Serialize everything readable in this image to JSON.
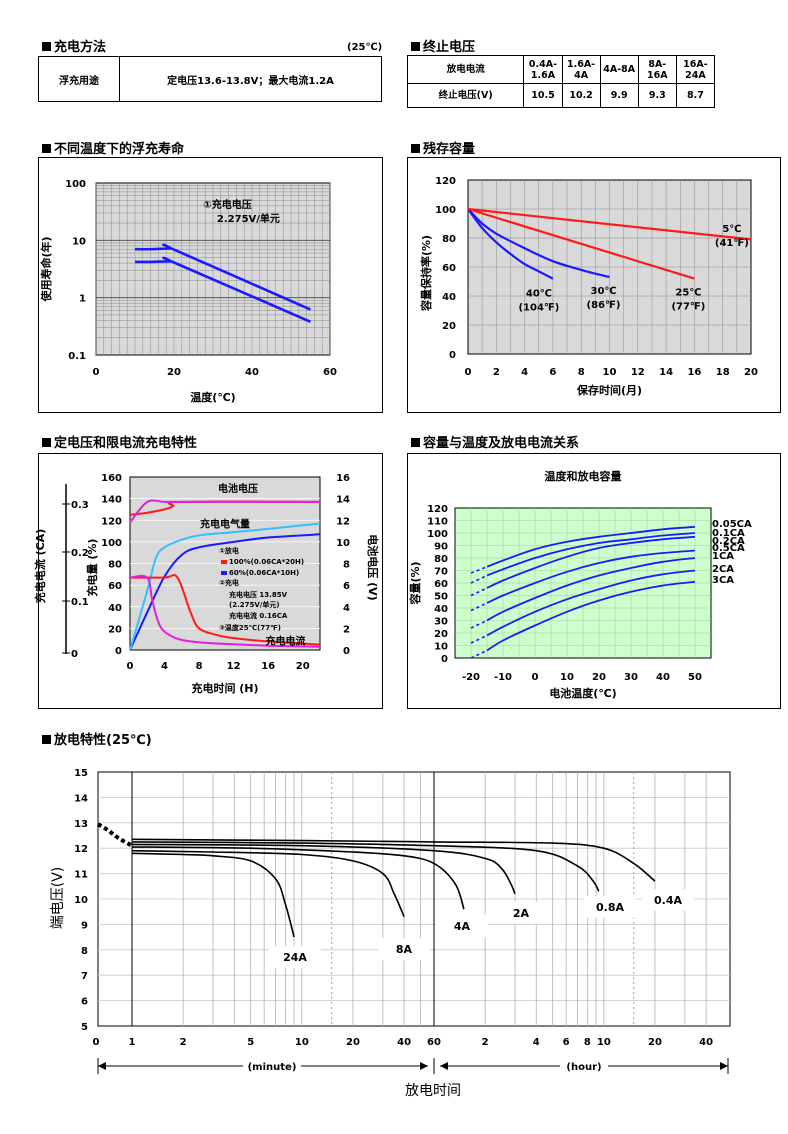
{
  "sections": {
    "float_method": {
      "title": "充电方法",
      "temp_note": "(25℃)",
      "row_label": "浮充用途",
      "row_value": "定电压13.6-13.8V；最大电流1.2A"
    },
    "cutoff": {
      "title": "终止电压",
      "header_label": "放电电流",
      "value_label": "终止电压(V)",
      "currents": [
        "0.4A-1.6A",
        "1.6A-4A",
        "4A-8A",
        "8A-16A",
        "16A-24A"
      ],
      "voltages": [
        "10.5",
        "10.2",
        "9.9",
        "9.3",
        "8.7"
      ]
    },
    "life": {
      "title": "不同温度下的浮充寿命"
    },
    "residual": {
      "title": "残存容量"
    },
    "charge": {
      "title": "定电压和限电流充电特性"
    },
    "capacity": {
      "title": "容量与温度及放电电流关系"
    },
    "discharge": {
      "title": "放电特性(25℃)"
    }
  },
  "chart_data": [
    {
      "id": "life",
      "type": "line",
      "xlabel": "温度(℃)",
      "ylabel": "使用寿命(年)",
      "xlim": [
        0,
        60
      ],
      "ylim": [
        0.1,
        100
      ],
      "y_scale": "log",
      "x_ticks": [
        "0",
        "20",
        "40",
        "60"
      ],
      "y_ticks": [
        "100",
        "10",
        "1",
        "0.1"
      ],
      "annotation": [
        "①充电电压",
        "2.275V/单元"
      ],
      "grid": true,
      "series": [
        {
          "x": [
            10,
            14,
            19,
            20,
            55
          ],
          "y": [
            7.0,
            7.0,
            7.2,
            6.9,
            0.62
          ]
        },
        {
          "x": [
            10,
            14,
            19,
            20,
            55
          ],
          "y": [
            4.2,
            4.2,
            4.3,
            4.1,
            0.38
          ]
        }
      ]
    },
    {
      "id": "residual",
      "type": "line",
      "xlabel": "保存时间(月)",
      "ylabel": "容量保持率(%)",
      "xlim": [
        0,
        20
      ],
      "ylim": [
        0,
        120
      ],
      "x_ticks": [
        "0",
        "2",
        "4",
        "6",
        "8",
        "10",
        "12",
        "14",
        "16",
        "18",
        "20"
      ],
      "y_ticks": [
        "0",
        "20",
        "40",
        "60",
        "80",
        "100",
        "120"
      ],
      "grid": true,
      "series": [
        {
          "name": "40℃(104℉)",
          "label_lines": [
            "40℃",
            "(104℉)"
          ],
          "color": "#1a1aff",
          "x": [
            0,
            1,
            2,
            3,
            4,
            5,
            6
          ],
          "y": [
            100,
            87,
            77,
            69,
            62,
            57,
            52
          ]
        },
        {
          "name": "30℃(86℉)",
          "label_lines": [
            "30℃",
            "(86℉)"
          ],
          "color": "#1a1aff",
          "x": [
            0,
            1,
            2,
            4,
            6,
            8,
            10
          ],
          "y": [
            100,
            90,
            83,
            73,
            64,
            58,
            53
          ]
        },
        {
          "name": "25℃(77℉)",
          "label_lines": [
            "25℃",
            "(77℉)"
          ],
          "color": "#ff1a1a",
          "x": [
            0,
            16
          ],
          "y": [
            100,
            52
          ]
        },
        {
          "name": "5℃(41℉)",
          "label_lines": [
            "5℃",
            "(41℉)"
          ],
          "color": "#ff1a1a",
          "x": [
            0,
            20
          ],
          "y": [
            100,
            79
          ]
        }
      ]
    },
    {
      "id": "charge",
      "type": "line",
      "xlabel": "充电时间 (H)",
      "left_axis_label": "充电电流 (CA)",
      "left_ticks": [
        "0",
        "0.1",
        "0.2",
        "0.3"
      ],
      "y1label": "充电量 (%)",
      "y2label": "电池电压 (V)",
      "xlim": [
        0,
        22
      ],
      "y1lim": [
        0,
        160
      ],
      "y2lim": [
        0,
        16
      ],
      "x_ticks": [
        "0",
        "4",
        "8",
        "12",
        "16",
        "20"
      ],
      "y1_ticks": [
        "0",
        "20",
        "40",
        "60",
        "80",
        "100",
        "120",
        "140",
        "160"
      ],
      "y2_ticks": [
        "0",
        "2",
        "4",
        "6",
        "8",
        "10",
        "12",
        "14",
        "16"
      ],
      "labels": {
        "battery_voltage": "电池电压",
        "charge_amount": "充电电气量",
        "charge_current": "充电电流"
      },
      "legend_lines": [
        "①放电",
        "100%(0.06CA*20H)",
        "60%(0.06CA*10H)",
        "②充电",
        "充电电压 13.85V",
        "(2.275V/单元)",
        "充电电流 0.16CA",
        "③温度25℃(77℉)"
      ],
      "series": [
        {
          "name": "100%(0.06CA*20H)",
          "color": "#ff1a1a",
          "axis": "y1",
          "x": [
            0,
            2,
            4,
            5,
            6,
            22
          ],
          "y": [
            125,
            127,
            130,
            133,
            137,
            137
          ]
        },
        {
          "name": "60%(0.06CA*10H)",
          "color": "#e020e0",
          "axis": "y1",
          "x": [
            0,
            2,
            4,
            6,
            22
          ],
          "y": [
            118,
            137,
            137,
            137,
            137
          ]
        },
        {
          "name": "充电电气量 (100%)",
          "color": "#1a1aff",
          "axis": "y1",
          "x": [
            0,
            2,
            4,
            6,
            8,
            12,
            16,
            22
          ],
          "y": [
            0,
            35,
            68,
            88,
            95,
            100,
            104,
            107
          ]
        },
        {
          "name": "充电电气量 (60%)",
          "color": "#33c0ff",
          "axis": "y1",
          "x": [
            0,
            2,
            3,
            4,
            6,
            8,
            12,
            16,
            22
          ],
          "y": [
            0,
            55,
            85,
            95,
            102,
            106,
            109,
            112,
            117
          ]
        },
        {
          "name": "充电电流 (100%)",
          "color": "#ff1a1a",
          "axis": "y1",
          "x": [
            0,
            4,
            5.5,
            7,
            8,
            10,
            12,
            16,
            22
          ],
          "y": [
            67,
            67,
            67,
            35,
            20,
            14,
            11,
            8,
            5
          ]
        },
        {
          "name": "充电电流 (60%)",
          "color": "#e020e0",
          "axis": "y1",
          "x": [
            0,
            2,
            2.6,
            3.5,
            5,
            7,
            10,
            16,
            22
          ],
          "y": [
            67,
            67,
            45,
            22,
            12,
            8,
            6,
            4,
            3
          ]
        }
      ]
    },
    {
      "id": "capacity",
      "type": "line",
      "title": "温度和放电容量",
      "xlabel": "电池温度(℃)",
      "ylabel": "容量(%)",
      "xlim": [
        -25,
        55
      ],
      "ylim": [
        0,
        120
      ],
      "x_ticks": [
        "-20",
        "-10",
        "0",
        "10",
        "20",
        "30",
        "40",
        "50"
      ],
      "y_ticks": [
        "0",
        "10",
        "20",
        "30",
        "40",
        "50",
        "60",
        "70",
        "80",
        "90",
        "100",
        "110",
        "120"
      ],
      "grid": true,
      "series": [
        {
          "name": "0.05CA",
          "x": [
            -20,
            -15,
            -10,
            0,
            10,
            20,
            30,
            40,
            50
          ],
          "y": [
            68,
            73,
            78,
            87,
            93,
            97,
            100,
            103,
            105
          ]
        },
        {
          "name": "0.1CA",
          "x": [
            -20,
            -15,
            -10,
            0,
            10,
            20,
            30,
            40,
            50
          ],
          "y": [
            60,
            66,
            71,
            80,
            87,
            92,
            95,
            98,
            100
          ]
        },
        {
          "name": "0.2CA",
          "x": [
            -20,
            -15,
            -10,
            0,
            10,
            20,
            30,
            40,
            50
          ],
          "y": [
            50,
            56,
            62,
            72,
            81,
            88,
            92,
            95,
            97
          ]
        },
        {
          "name": "0.5CA",
          "x": [
            -20,
            -15,
            -10,
            0,
            10,
            20,
            30,
            40,
            50
          ],
          "y": [
            38,
            44,
            50,
            60,
            69,
            76,
            81,
            84,
            86
          ]
        },
        {
          "name": "1CA",
          "x": [
            -20,
            -15,
            -10,
            0,
            10,
            20,
            30,
            40,
            50
          ],
          "y": [
            24,
            30,
            37,
            48,
            58,
            66,
            72,
            77,
            80
          ]
        },
        {
          "name": "2CA",
          "x": [
            -20,
            -15,
            -10,
            0,
            10,
            20,
            30,
            40,
            50
          ],
          "y": [
            12,
            18,
            25,
            37,
            47,
            55,
            62,
            67,
            70
          ]
        },
        {
          "name": "3CA",
          "x": [
            -20,
            -15,
            -10,
            0,
            10,
            20,
            30,
            40,
            50
          ],
          "y": [
            0,
            6,
            14,
            26,
            37,
            46,
            53,
            58,
            61
          ]
        }
      ]
    },
    {
      "id": "discharge",
      "type": "line",
      "xlabel": "放电时间",
      "ylabel": "端电压(V)",
      "ylim": [
        5,
        15
      ],
      "y_ticks": [
        "5",
        "6",
        "7",
        "8",
        "9",
        "10",
        "11",
        "12",
        "13",
        "14",
        "15"
      ],
      "x_ticks_minute": [
        "0",
        "1",
        "2",
        "5",
        "10",
        "20",
        "40",
        "60"
      ],
      "x_ticks_hour": [
        "2",
        "4",
        "6",
        "8",
        "10",
        "20",
        "40"
      ],
      "minute_label": "(minute)",
      "hour_label": "(hour)",
      "x_scale": "log",
      "grid": true,
      "series": [
        {
          "name": "24A",
          "x_min": [
            1,
            2,
            3,
            5,
            7,
            8,
            9
          ],
          "y": [
            11.8,
            11.75,
            11.7,
            11.5,
            10.8,
            9.8,
            8.5
          ]
        },
        {
          "name": "8A",
          "x_min": [
            1,
            3,
            10,
            20,
            30,
            35,
            40
          ],
          "y": [
            11.9,
            11.85,
            11.75,
            11.5,
            11.0,
            10.2,
            9.3
          ]
        },
        {
          "name": "4A",
          "x_min": [
            1,
            5,
            20,
            40,
            60,
            80,
            90
          ],
          "y": [
            12.05,
            12.0,
            11.85,
            11.7,
            11.4,
            10.6,
            9.6
          ]
        },
        {
          "name": "2A",
          "x_min": [
            1,
            10,
            60,
            120,
            150,
            170,
            180
          ],
          "y": [
            12.15,
            12.1,
            11.9,
            11.6,
            11.2,
            10.6,
            10.2
          ]
        },
        {
          "name": "0.8A",
          "x_min": [
            1,
            10,
            60,
            240,
            420,
            520,
            560
          ],
          "y": [
            12.25,
            12.2,
            12.1,
            11.9,
            11.3,
            10.7,
            10.3
          ]
        },
        {
          "name": "0.4A",
          "x_min": [
            1,
            10,
            60,
            300,
            600,
            900,
            1200
          ],
          "y": [
            12.35,
            12.3,
            12.25,
            12.2,
            12.0,
            11.4,
            10.7
          ]
        }
      ],
      "initial_dashes": {
        "x_min": [
          0,
          0.3,
          0.6,
          1
        ],
        "y": [
          12.95,
          12.7,
          12.4,
          12.1
        ]
      },
      "series_labels": [
        "24A",
        "8A",
        "4A",
        "2A",
        "0.8A",
        "0.4A"
      ]
    }
  ]
}
